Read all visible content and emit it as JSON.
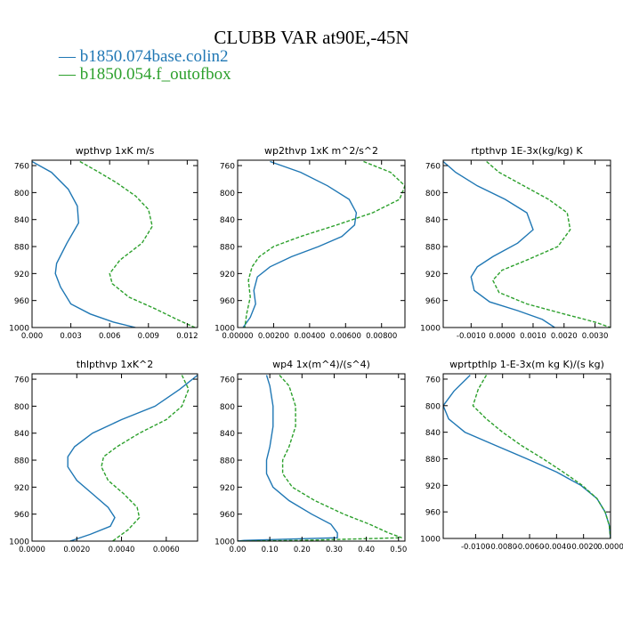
{
  "title": "CLUBB VAR at90E,-45N",
  "legend": [
    {
      "name": "b1850.074base.colin2",
      "color": "#1f77b4",
      "dash": "solid"
    },
    {
      "name": "b1850.054.f_outofbox",
      "color": "#2ca02c",
      "dash": "dashed"
    }
  ],
  "chart_data": [
    {
      "type": "line",
      "title": "wpthvp  1xK m/s",
      "xlim": [
        0,
        0.0128
      ],
      "ylim": [
        1000,
        752
      ],
      "xticks": [
        0,
        0.003,
        0.006,
        0.009,
        0.012
      ],
      "xtick_labels": [
        "0.000",
        "0.003",
        "0.006",
        "0.009",
        "0.012"
      ],
      "yticks": [
        760,
        800,
        840,
        880,
        920,
        960,
        1000
      ],
      "series": [
        {
          "name": "b1850.074base.colin2",
          "x": [
            0.0,
            0.0015,
            0.0028,
            0.0035,
            0.0036,
            0.0027,
            0.0019,
            0.0018,
            0.0022,
            0.003,
            0.0045,
            0.0063,
            0.008
          ],
          "y": [
            754,
            770,
            795,
            820,
            845,
            875,
            905,
            920,
            940,
            965,
            980,
            992,
            1000
          ]
        },
        {
          "name": "b1850.054.f_outofbox",
          "x": [
            0.0037,
            0.005,
            0.0065,
            0.008,
            0.009,
            0.0093,
            0.0085,
            0.0068,
            0.006,
            0.0062,
            0.0075,
            0.0095,
            0.0112,
            0.0126
          ],
          "y": [
            754,
            768,
            785,
            805,
            825,
            850,
            875,
            900,
            920,
            935,
            955,
            972,
            988,
            1000
          ]
        }
      ]
    },
    {
      "type": "line",
      "title": "wp2thvp  1xK m^2/s^2",
      "xlim": [
        0,
        0.0093
      ],
      "ylim": [
        1000,
        752
      ],
      "xticks": [
        0,
        0.002,
        0.004,
        0.006,
        0.008
      ],
      "xtick_labels": [
        "0.00000",
        "0.00200",
        "0.00400",
        "0.00600",
        "0.00800"
      ],
      "yticks": [
        760,
        800,
        840,
        880,
        920,
        960,
        1000
      ],
      "series": [
        {
          "name": "b1850.074base.colin2",
          "x": [
            0.0018,
            0.0035,
            0.005,
            0.0062,
            0.0066,
            0.0065,
            0.0058,
            0.0045,
            0.003,
            0.0018,
            0.0011,
            0.0009,
            0.001,
            0.0007,
            0.0003
          ],
          "y": [
            754,
            770,
            790,
            810,
            830,
            848,
            865,
            880,
            895,
            910,
            925,
            945,
            965,
            985,
            1000
          ]
        },
        {
          "name": "b1850.054.f_outofbox",
          "x": [
            0.007,
            0.0085,
            0.0093,
            0.009,
            0.0075,
            0.0055,
            0.0035,
            0.002,
            0.0012,
            0.0008,
            0.0006,
            0.0007,
            0.0005,
            0.0004
          ],
          "y": [
            754,
            770,
            790,
            810,
            830,
            848,
            865,
            880,
            895,
            910,
            930,
            955,
            980,
            1000
          ]
        }
      ]
    },
    {
      "type": "line",
      "title": "rtpthvp  1E-3x(kg/kg) K",
      "xlim": [
        -0.0019,
        0.0035
      ],
      "ylim": [
        1000,
        752
      ],
      "xticks": [
        -0.001,
        0.0,
        0.001,
        0.002,
        0.003
      ],
      "xtick_labels": [
        "-0.0010",
        "0.0000",
        "0.0010",
        "0.0020",
        "0.0030"
      ],
      "yticks": [
        760,
        800,
        840,
        880,
        920,
        960,
        1000
      ],
      "series": [
        {
          "name": "b1850.074base.colin2",
          "x": [
            -0.0019,
            -0.0015,
            -0.0008,
            0.0001,
            0.0008,
            0.001,
            0.0005,
            -0.0003,
            -0.0008,
            -0.001,
            -0.0009,
            -0.0004,
            0.0005,
            0.0013,
            0.0017
          ],
          "y": [
            754,
            770,
            790,
            810,
            830,
            855,
            875,
            895,
            910,
            925,
            945,
            962,
            975,
            988,
            1000
          ]
        },
        {
          "name": "b1850.054.f_outofbox",
          "x": [
            -0.0005,
            -0.0001,
            0.0007,
            0.0015,
            0.0021,
            0.0022,
            0.0018,
            0.0008,
            0.0,
            -0.0003,
            -0.0001,
            0.0008,
            0.002,
            0.003,
            0.0035
          ],
          "y": [
            754,
            770,
            790,
            810,
            830,
            855,
            880,
            900,
            915,
            930,
            948,
            965,
            980,
            992,
            1000
          ]
        }
      ]
    },
    {
      "type": "line",
      "title": "thlpthvp  1xK^2",
      "xlim": [
        0,
        0.0074
      ],
      "ylim": [
        1000,
        752
      ],
      "xticks": [
        0,
        0.002,
        0.004,
        0.006
      ],
      "xtick_labels": [
        "0.0000",
        "0.0020",
        "0.0040",
        "0.0060"
      ],
      "yticks": [
        760,
        800,
        840,
        880,
        920,
        960,
        1000
      ],
      "series": [
        {
          "name": "b1850.074base.colin2",
          "x": [
            0.0074,
            0.0066,
            0.0055,
            0.004,
            0.0027,
            0.0019,
            0.0016,
            0.0016,
            0.002,
            0.0027,
            0.0034,
            0.0037,
            0.0035,
            0.0026,
            0.0017
          ],
          "y": [
            754,
            775,
            800,
            820,
            840,
            860,
            875,
            890,
            910,
            930,
            950,
            965,
            978,
            990,
            1000
          ]
        },
        {
          "name": "b1850.054.f_outofbox",
          "x": [
            0.0067,
            0.007,
            0.0067,
            0.006,
            0.0048,
            0.0038,
            0.0032,
            0.0031,
            0.0034,
            0.0041,
            0.0047,
            0.0048,
            0.0043,
            0.0036
          ],
          "y": [
            754,
            775,
            800,
            820,
            840,
            860,
            875,
            890,
            910,
            930,
            950,
            965,
            983,
            1000
          ]
        }
      ]
    },
    {
      "type": "line",
      "title": "wp4  1x(m^4)/(s^4)",
      "xlim": [
        0,
        0.52
      ],
      "ylim": [
        1000,
        752
      ],
      "xticks": [
        0,
        0.1,
        0.2,
        0.3,
        0.4,
        0.5
      ],
      "xtick_labels": [
        "0.00",
        "0.10",
        "0.20",
        "0.30",
        "0.40",
        "0.50"
      ],
      "yticks": [
        760,
        800,
        840,
        880,
        920,
        960,
        1000
      ],
      "series": [
        {
          "name": "b1850.074base.colin2",
          "x": [
            0.09,
            0.1,
            0.11,
            0.11,
            0.1,
            0.09,
            0.09,
            0.11,
            0.16,
            0.23,
            0.29,
            0.31,
            0.31,
            0.02,
            0.0
          ],
          "y": [
            754,
            770,
            800,
            830,
            860,
            880,
            900,
            920,
            940,
            960,
            975,
            988,
            995,
            999,
            1000
          ]
        },
        {
          "name": "b1850.054.f_outofbox",
          "x": [
            0.13,
            0.16,
            0.18,
            0.18,
            0.16,
            0.14,
            0.14,
            0.17,
            0.24,
            0.33,
            0.41,
            0.47,
            0.51,
            0.2,
            0.0
          ],
          "y": [
            754,
            770,
            800,
            830,
            860,
            880,
            900,
            920,
            940,
            960,
            975,
            988,
            995,
            999,
            1000
          ]
        }
      ]
    },
    {
      "type": "line",
      "title": "wprtpthlp  1-E-3x(m kg K)/(s kg)",
      "xlim": [
        -0.0124,
        0.0
      ],
      "ylim": [
        1000,
        752
      ],
      "xticks": [
        -0.01,
        -0.008,
        -0.006,
        -0.004,
        -0.002,
        0.0
      ],
      "xtick_labels": [
        "-0.0100",
        "-0.0080",
        "-0.0060",
        "-0.0040",
        "-0.0020",
        "0.0000"
      ],
      "yticks": [
        760,
        800,
        840,
        880,
        920,
        960,
        1000
      ],
      "series": [
        {
          "name": "b1850.074base.colin2",
          "x": [
            -0.0104,
            -0.0116,
            -0.0124,
            -0.012,
            -0.0108,
            -0.0085,
            -0.0062,
            -0.004,
            -0.0022,
            -0.001,
            -0.0004,
            -0.0001,
            0.0
          ],
          "y": [
            754,
            778,
            800,
            820,
            840,
            860,
            880,
            900,
            920,
            940,
            960,
            980,
            1000
          ]
        },
        {
          "name": "b1850.054.f_outofbox",
          "x": [
            -0.0092,
            -0.0098,
            -0.0102,
            -0.0092,
            -0.008,
            -0.0066,
            -0.005,
            -0.0035,
            -0.0021,
            -0.001,
            -0.0004,
            -0.0001,
            0.0
          ],
          "y": [
            754,
            775,
            800,
            820,
            840,
            860,
            880,
            900,
            920,
            940,
            960,
            980,
            1000
          ]
        }
      ]
    }
  ]
}
